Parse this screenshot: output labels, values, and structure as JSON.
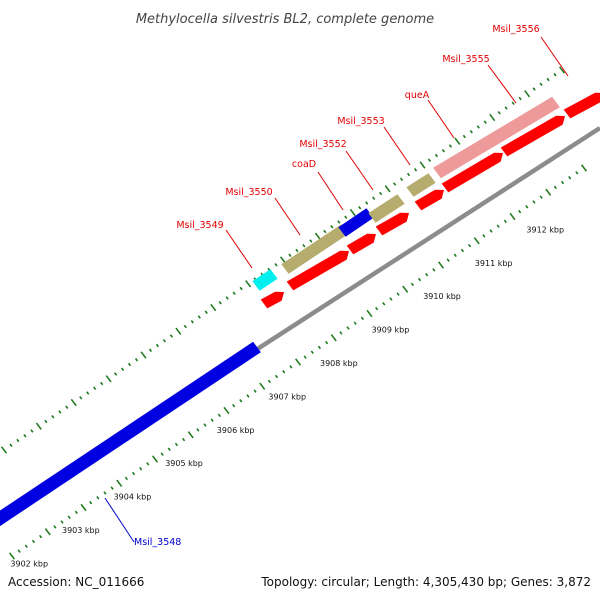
{
  "title": "Methylocella silvestris BL2, complete genome",
  "footer": {
    "accession": "Accession: NC_011666",
    "topology": "Topology: circular; Length: 4,305,430 bp; Genes: 3,872"
  },
  "colors": {
    "label_red": "#e00000",
    "label_blue": "#0000cc",
    "tick_green": "#1f7a1f",
    "backbone": "#8c8c8c",
    "cds_red": "#ff0000",
    "gene_olive": "#b5ac6e",
    "gene_blue": "#0000e0",
    "gene_cyan": "#00f0f0",
    "gene_pink": "#ef9a9a"
  },
  "kbp_ticks": [
    "3902 kbp",
    "3903 kbp",
    "3904 kbp",
    "3905 kbp",
    "3906 kbp",
    "3907 kbp",
    "3908 kbp",
    "3909 kbp",
    "3910 kbp",
    "3911 kbp",
    "3912 kbp"
  ],
  "gene_labels": [
    {
      "text": "Msil_3548",
      "color": "blue"
    },
    {
      "text": "Msil_3549",
      "color": "red"
    },
    {
      "text": "Msil_3550",
      "color": "red"
    },
    {
      "text": "coaD",
      "color": "red"
    },
    {
      "text": "Msil_3552",
      "color": "red"
    },
    {
      "text": "Msil_3553",
      "color": "red"
    },
    {
      "text": "queA",
      "color": "red"
    },
    {
      "text": "Msil_3555",
      "color": "red"
    },
    {
      "text": "Msil_3556",
      "color": "red"
    }
  ],
  "feature_tracks": [
    {
      "name": "Msil_3548",
      "color": "gene_blue"
    },
    {
      "name": "Msil_3549",
      "color": "gene_cyan"
    },
    {
      "name": "Msil_3550",
      "color": "gene_olive"
    },
    {
      "name": "coaD",
      "color": "gene_blue"
    },
    {
      "name": "Msil_3552",
      "color": "gene_olive"
    },
    {
      "name": "Msil_3553",
      "color": "gene_olive"
    },
    {
      "name": "queA-Msil_3555",
      "color": "gene_pink"
    }
  ]
}
